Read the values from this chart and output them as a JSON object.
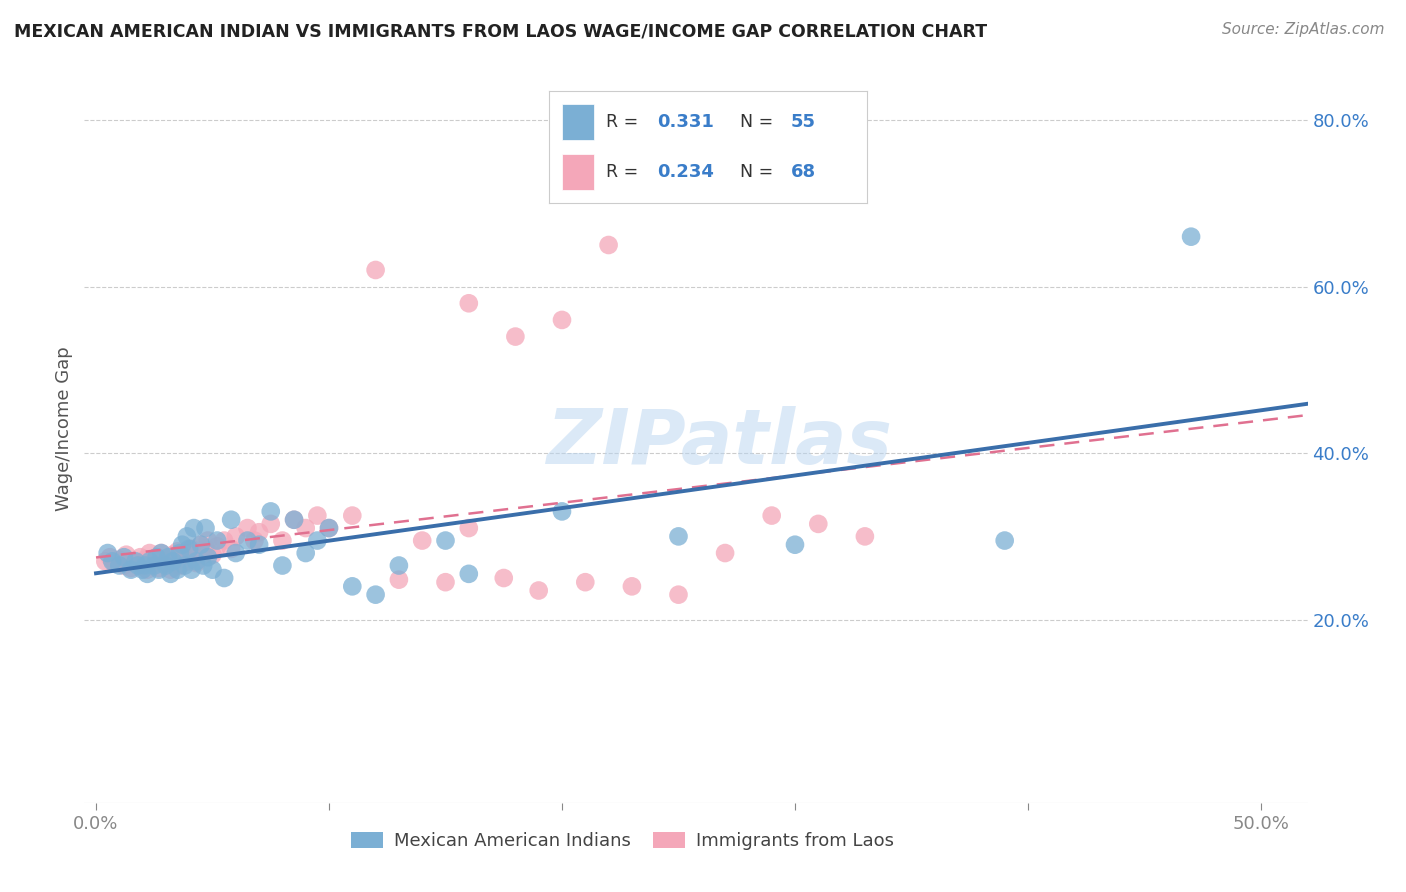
{
  "title": "MEXICAN AMERICAN INDIAN VS IMMIGRANTS FROM LAOS WAGE/INCOME GAP CORRELATION CHART",
  "source": "Source: ZipAtlas.com",
  "ylabel": "Wage/Income Gap",
  "blue_color": "#7bafd4",
  "pink_color": "#f4a7b9",
  "blue_line_color": "#3a6eaa",
  "pink_line_color": "#e07090",
  "watermark": "ZIPatlas",
  "legend_blue_R": "0.331",
  "legend_blue_N": "55",
  "legend_pink_R": "0.234",
  "legend_pink_N": "68",
  "label_blue": "Mexican American Indians",
  "label_pink": "Immigrants from Laos",
  "background_color": "#ffffff",
  "grid_color": "#cccccc",
  "blue_scatter_x": [
    0.005,
    0.007,
    0.01,
    0.012,
    0.015,
    0.017,
    0.018,
    0.02,
    0.021,
    0.022,
    0.023,
    0.025,
    0.026,
    0.027,
    0.028,
    0.03,
    0.031,
    0.032,
    0.033,
    0.035,
    0.036,
    0.037,
    0.038,
    0.039,
    0.04,
    0.041,
    0.042,
    0.043,
    0.045,
    0.046,
    0.047,
    0.048,
    0.05,
    0.052,
    0.055,
    0.058,
    0.06,
    0.065,
    0.07,
    0.075,
    0.08,
    0.085,
    0.09,
    0.095,
    0.1,
    0.11,
    0.12,
    0.13,
    0.15,
    0.16,
    0.2,
    0.25,
    0.3,
    0.39,
    0.47
  ],
  "blue_scatter_y": [
    0.28,
    0.27,
    0.265,
    0.275,
    0.26,
    0.27,
    0.265,
    0.26,
    0.265,
    0.255,
    0.27,
    0.265,
    0.275,
    0.26,
    0.28,
    0.265,
    0.275,
    0.255,
    0.27,
    0.26,
    0.28,
    0.29,
    0.265,
    0.3,
    0.285,
    0.26,
    0.31,
    0.27,
    0.29,
    0.265,
    0.31,
    0.275,
    0.26,
    0.295,
    0.25,
    0.32,
    0.28,
    0.295,
    0.29,
    0.33,
    0.265,
    0.32,
    0.28,
    0.295,
    0.31,
    0.24,
    0.23,
    0.265,
    0.295,
    0.255,
    0.33,
    0.3,
    0.29,
    0.295,
    0.66
  ],
  "pink_scatter_x": [
    0.004,
    0.006,
    0.008,
    0.01,
    0.012,
    0.013,
    0.015,
    0.016,
    0.018,
    0.019,
    0.02,
    0.021,
    0.022,
    0.023,
    0.025,
    0.026,
    0.027,
    0.028,
    0.03,
    0.031,
    0.032,
    0.033,
    0.034,
    0.035,
    0.036,
    0.038,
    0.039,
    0.04,
    0.041,
    0.042,
    0.043,
    0.045,
    0.046,
    0.047,
    0.048,
    0.05,
    0.052,
    0.055,
    0.058,
    0.06,
    0.065,
    0.068,
    0.07,
    0.075,
    0.08,
    0.085,
    0.09,
    0.095,
    0.1,
    0.11,
    0.12,
    0.13,
    0.14,
    0.15,
    0.16,
    0.175,
    0.19,
    0.21,
    0.23,
    0.25,
    0.27,
    0.29,
    0.31,
    0.33,
    0.16,
    0.18,
    0.2,
    0.22
  ],
  "pink_scatter_y": [
    0.27,
    0.275,
    0.268,
    0.272,
    0.265,
    0.278,
    0.262,
    0.27,
    0.268,
    0.275,
    0.265,
    0.272,
    0.26,
    0.28,
    0.268,
    0.275,
    0.262,
    0.28,
    0.268,
    0.272,
    0.26,
    0.278,
    0.27,
    0.282,
    0.265,
    0.275,
    0.28,
    0.27,
    0.285,
    0.275,
    0.268,
    0.29,
    0.278,
    0.285,
    0.295,
    0.278,
    0.288,
    0.295,
    0.285,
    0.3,
    0.31,
    0.295,
    0.305,
    0.315,
    0.295,
    0.32,
    0.31,
    0.325,
    0.31,
    0.325,
    0.62,
    0.248,
    0.295,
    0.245,
    0.31,
    0.25,
    0.235,
    0.245,
    0.24,
    0.23,
    0.28,
    0.325,
    0.315,
    0.3,
    0.58,
    0.54,
    0.56,
    0.65
  ],
  "xlim": [
    -0.005,
    0.52
  ],
  "ylim": [
    -0.02,
    0.88
  ],
  "xtick_vals": [
    0.0,
    0.1,
    0.2,
    0.3,
    0.4,
    0.5
  ],
  "xtick_labels": [
    "0.0%",
    "",
    "",
    "",
    "",
    "50.0%"
  ],
  "ytick_right_vals": [
    0.2,
    0.4,
    0.6,
    0.8
  ],
  "ytick_right_labels": [
    "20.0%",
    "40.0%",
    "60.0%",
    "80.0%"
  ]
}
